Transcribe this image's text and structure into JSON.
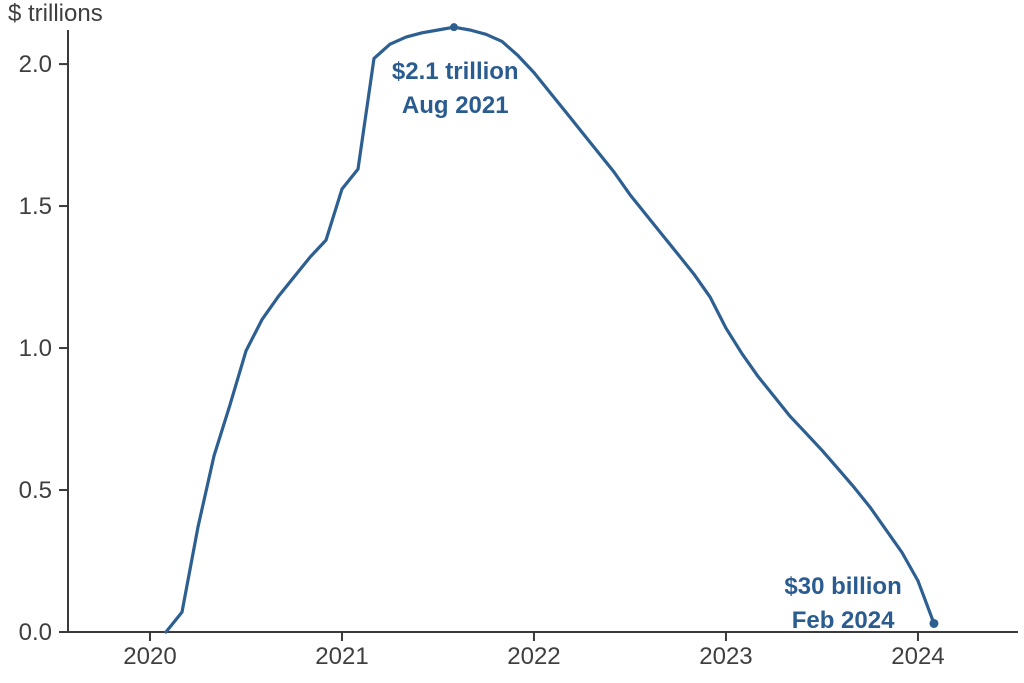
{
  "page": {
    "background": "#ffffff"
  },
  "chart_data": {
    "type": "line",
    "title": "",
    "ylabel": "$ trillions",
    "xlabel": "",
    "grid": false,
    "legend": "none",
    "xlim": [
      2019.573,
      2024.521
    ],
    "ylim": [
      0,
      2.12
    ],
    "x_ticks": [
      2020,
      2021,
      2022,
      2023,
      2024
    ],
    "x_tick_labels": [
      "2020",
      "2021",
      "2022",
      "2023",
      "2024"
    ],
    "y_ticks": [
      0,
      0.5,
      1.0,
      1.5,
      2.0
    ],
    "y_tick_labels": [
      "0.0",
      "0.5",
      "1.0",
      "1.5",
      "2.0"
    ],
    "series": [
      {
        "name": "cumulative-excess-savings",
        "color": "#2d5f91",
        "x": [
          2020.0833,
          2020.1667,
          2020.25,
          2020.3333,
          2020.4167,
          2020.5,
          2020.5833,
          2020.6667,
          2020.75,
          2020.8333,
          2020.9167,
          2021.0,
          2021.0833,
          2021.1667,
          2021.25,
          2021.3333,
          2021.4167,
          2021.5,
          2021.5833,
          2021.6667,
          2021.75,
          2021.8333,
          2021.9167,
          2022.0,
          2022.0833,
          2022.1667,
          2022.25,
          2022.3333,
          2022.4167,
          2022.5,
          2022.5833,
          2022.6667,
          2022.75,
          2022.8333,
          2022.9167,
          2023.0,
          2023.0833,
          2023.1667,
          2023.25,
          2023.3333,
          2023.4167,
          2023.5,
          2023.5833,
          2023.6667,
          2023.75,
          2023.8333,
          2023.9167,
          2024.0,
          2024.0833
        ],
        "values": [
          0.0,
          0.07,
          0.37,
          0.62,
          0.8,
          0.99,
          1.1,
          1.18,
          1.25,
          1.32,
          1.38,
          1.56,
          1.63,
          2.02,
          2.07,
          2.095,
          2.11,
          2.12,
          2.13,
          2.12,
          2.105,
          2.08,
          2.03,
          1.97,
          1.9,
          1.83,
          1.76,
          1.69,
          1.62,
          1.54,
          1.47,
          1.4,
          1.33,
          1.26,
          1.18,
          1.07,
          0.98,
          0.9,
          0.83,
          0.76,
          0.7,
          0.64,
          0.575,
          0.51,
          0.44,
          0.36,
          0.28,
          0.18,
          0.03
        ]
      }
    ],
    "markers": [
      {
        "x": 2021.5833,
        "y": 2.13,
        "name": "peak-marker-dot"
      },
      {
        "x": 2024.0833,
        "y": 0.03,
        "name": "end-marker-dot"
      }
    ],
    "annotations": [
      {
        "name": "annotation-peak",
        "x": 2021.59,
        "y": 1.947,
        "lines": [
          "$2.1 trillion",
          "Aug 2021"
        ]
      },
      {
        "name": "annotation-end",
        "x": 2023.61,
        "y": 0.134,
        "lines": [
          "$30 billion",
          "Feb 2024"
        ]
      }
    ],
    "colors": {
      "line": "#2d5f91",
      "annotation_text": "#2b5c90",
      "axis": "#3a3a3a",
      "tick_label": "#3f3f3f"
    }
  }
}
